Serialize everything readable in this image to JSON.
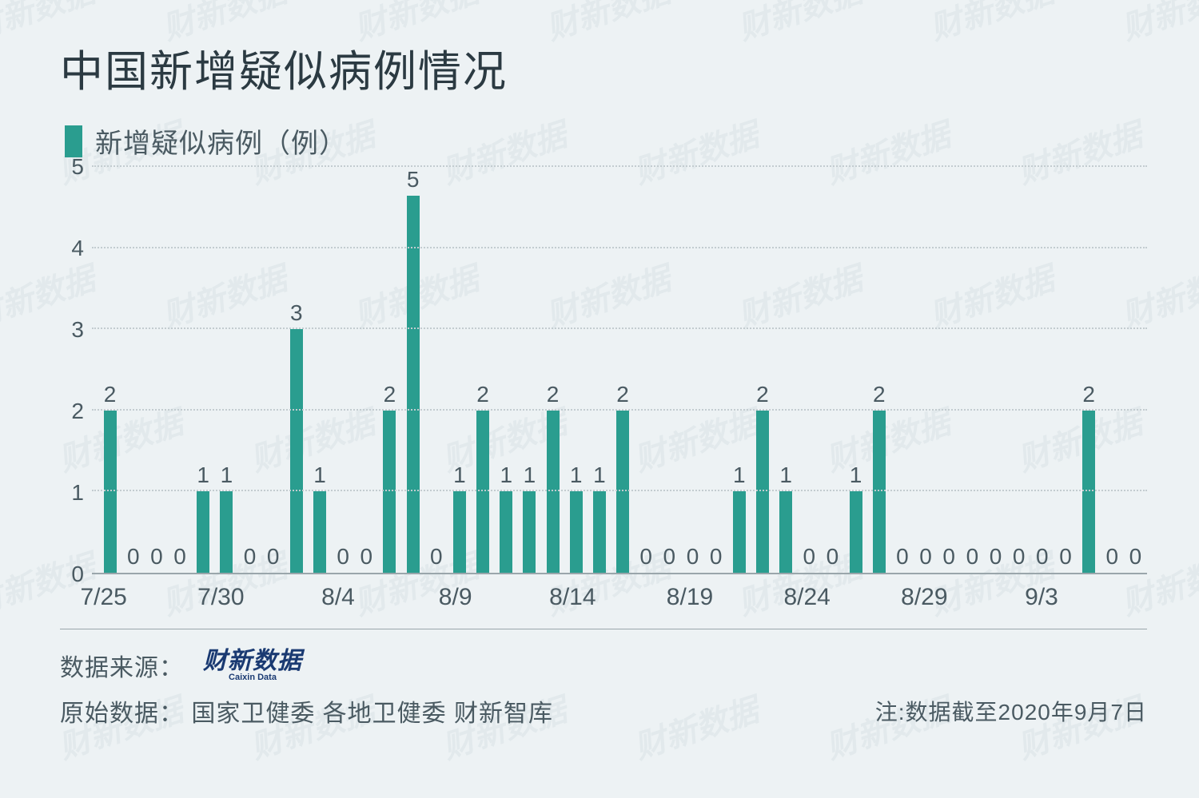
{
  "title": "中国新增疑似病例情况",
  "legend_label": "新增疑似病例（例）",
  "watermark_text": "财新数据",
  "chart": {
    "type": "bar",
    "bar_color": "#2a9d8f",
    "background_color": "#edf2f4",
    "grid_color": "#c3ccd0",
    "axis_color": "#9aa6ab",
    "text_color": "#4a5a62",
    "title_fontsize": 54,
    "label_fontsize": 28,
    "xtick_fontsize": 30,
    "ylim": [
      0,
      5
    ],
    "ytick_step": 1,
    "bar_width": 0.55,
    "categories": [
      "7/25",
      "7/26",
      "7/27",
      "7/28",
      "7/29",
      "7/30",
      "7/31",
      "8/1",
      "8/2",
      "8/3",
      "8/4",
      "8/5",
      "8/6",
      "8/7",
      "8/8",
      "8/9",
      "8/10",
      "8/11",
      "8/12",
      "8/13",
      "8/14",
      "8/15",
      "8/16",
      "8/17",
      "8/18",
      "8/19",
      "8/20",
      "8/21",
      "8/22",
      "8/23",
      "8/24",
      "8/25",
      "8/26",
      "8/27",
      "8/28",
      "8/29",
      "8/30",
      "8/31",
      "9/1",
      "9/2",
      "9/3",
      "9/4",
      "9/5",
      "9/6",
      "9/7"
    ],
    "values": [
      2,
      0,
      0,
      0,
      1,
      1,
      0,
      0,
      3,
      1,
      0,
      0,
      2,
      5,
      0,
      1,
      2,
      1,
      1,
      2,
      1,
      1,
      2,
      0,
      0,
      0,
      0,
      1,
      2,
      1,
      0,
      0,
      1,
      2,
      0,
      0,
      0,
      0,
      0,
      0,
      0,
      0,
      2,
      0,
      0
    ],
    "x_tick_labels": [
      "7/25",
      "7/30",
      "8/4",
      "8/9",
      "8/14",
      "8/19",
      "8/24",
      "8/29",
      "9/3"
    ],
    "x_tick_indices": [
      0,
      5,
      10,
      15,
      20,
      25,
      30,
      35,
      40
    ]
  },
  "footer": {
    "data_source_label": "数据来源：",
    "logo_main": "财新数据",
    "logo_sub": "Caixin Data",
    "raw_source_label": "原始数据：",
    "raw_source_value": "国家卫健委 各地卫健委 财新智库",
    "note": "注:数据截至2020年9月7日"
  }
}
